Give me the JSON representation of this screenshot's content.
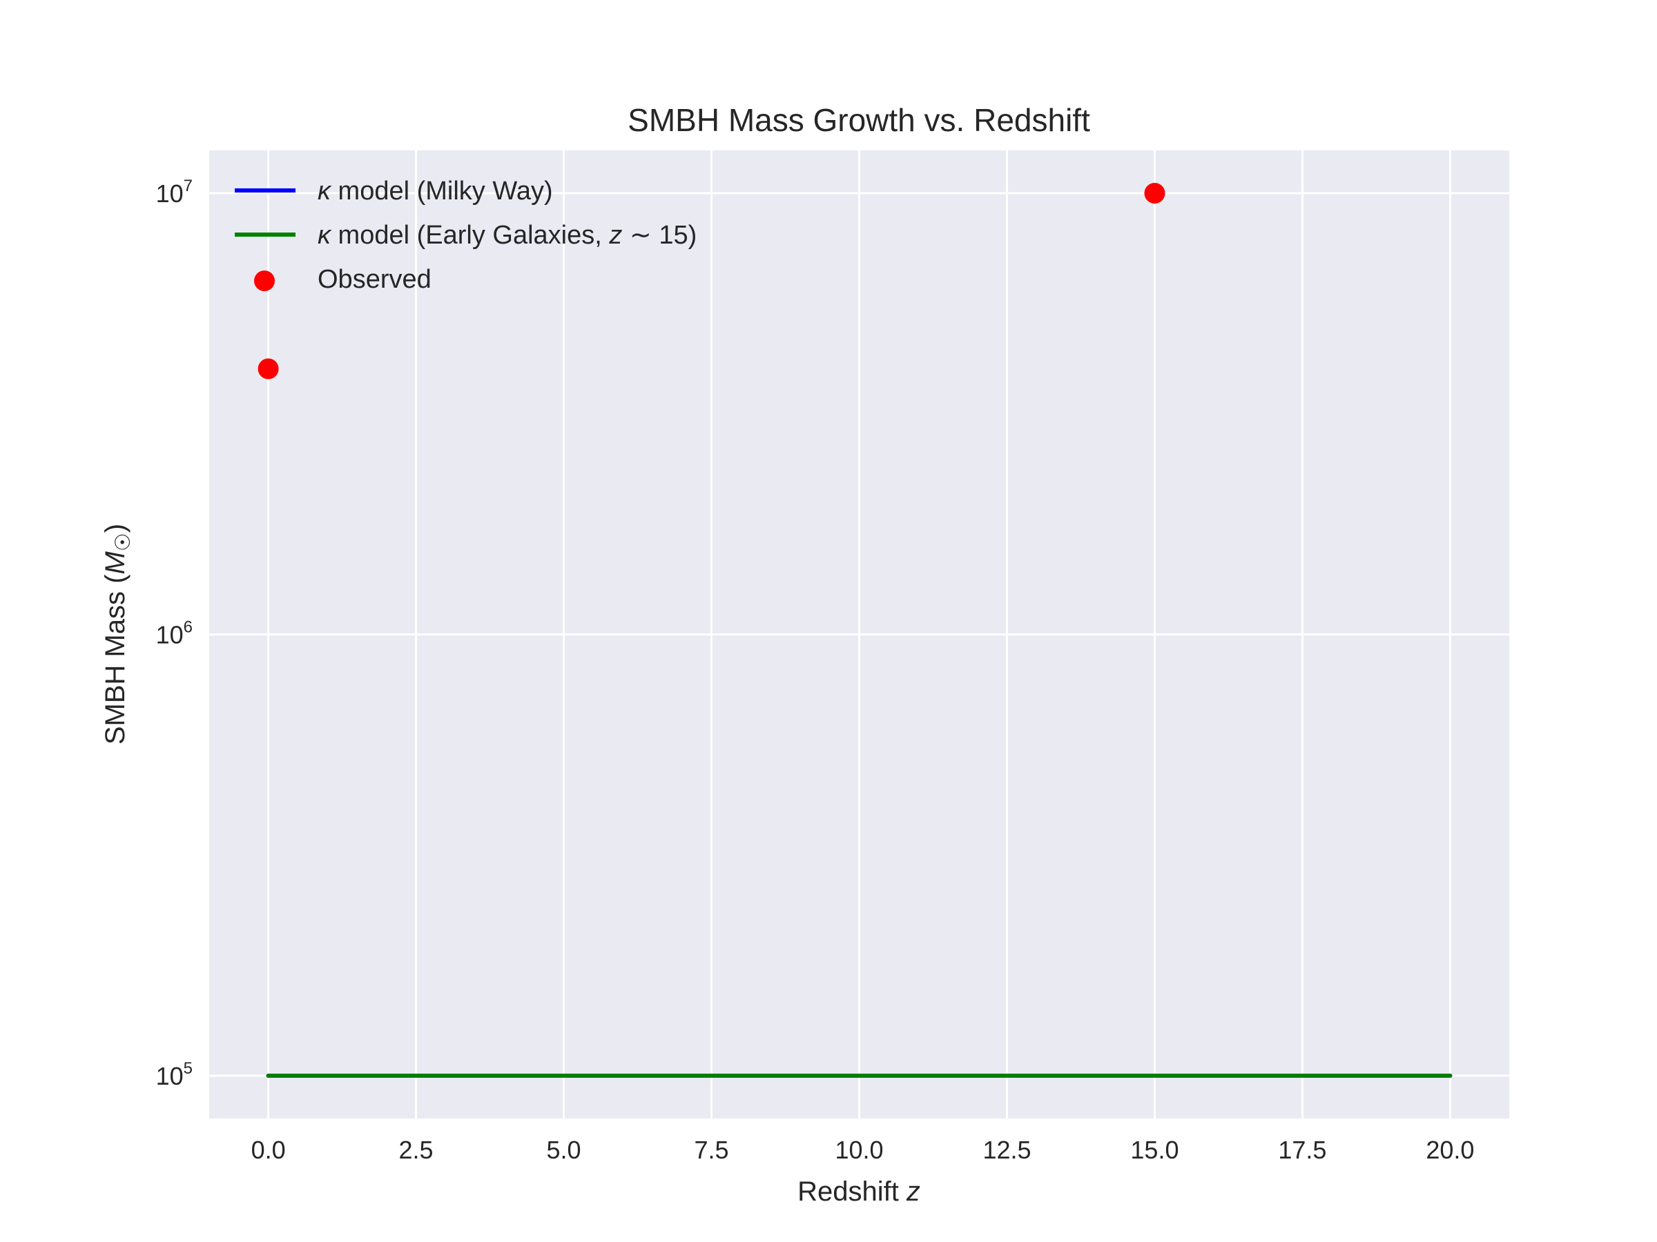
{
  "chart_data": {
    "type": "line",
    "title": "SMBH Mass Growth vs. Redshift",
    "xlabel": "Redshift z",
    "ylabel": "SMBH Mass (M☉)",
    "xlim": [
      -1,
      21
    ],
    "ylim": [
      80000,
      12500000
    ],
    "yscale": "log",
    "grid": true,
    "legend_position": "upper-left",
    "x_ticks": [
      0,
      2.5,
      5,
      7.5,
      10,
      12.5,
      15,
      17.5,
      20
    ],
    "x_tick_labels": [
      "0.0",
      "2.5",
      "5.0",
      "7.5",
      "10.0",
      "12.5",
      "15.0",
      "17.5",
      "20.0"
    ],
    "y_ticks": [
      100000,
      1000000,
      10000000
    ],
    "y_tick_labels": [
      {
        "base": "10",
        "exp": "5"
      },
      {
        "base": "10",
        "exp": "6"
      },
      {
        "base": "10",
        "exp": "7"
      }
    ],
    "series": [
      {
        "name": "κ model (Milky Way)",
        "kind": "line",
        "color": "#0000ff",
        "x": [
          0,
          20
        ],
        "y": [
          100000,
          100000
        ]
      },
      {
        "name": "κ model (Early Galaxies, z ∼ 15)",
        "kind": "line",
        "color": "#008000",
        "x": [
          0,
          20
        ],
        "y": [
          100000,
          100000
        ]
      },
      {
        "name": "Observed",
        "kind": "scatter",
        "color": "#ff0000",
        "x": [
          0,
          15
        ],
        "y": [
          4000000,
          10000000
        ]
      }
    ]
  },
  "colors": {
    "plot_background": "#eaeaf2",
    "grid": "#ffffff"
  }
}
